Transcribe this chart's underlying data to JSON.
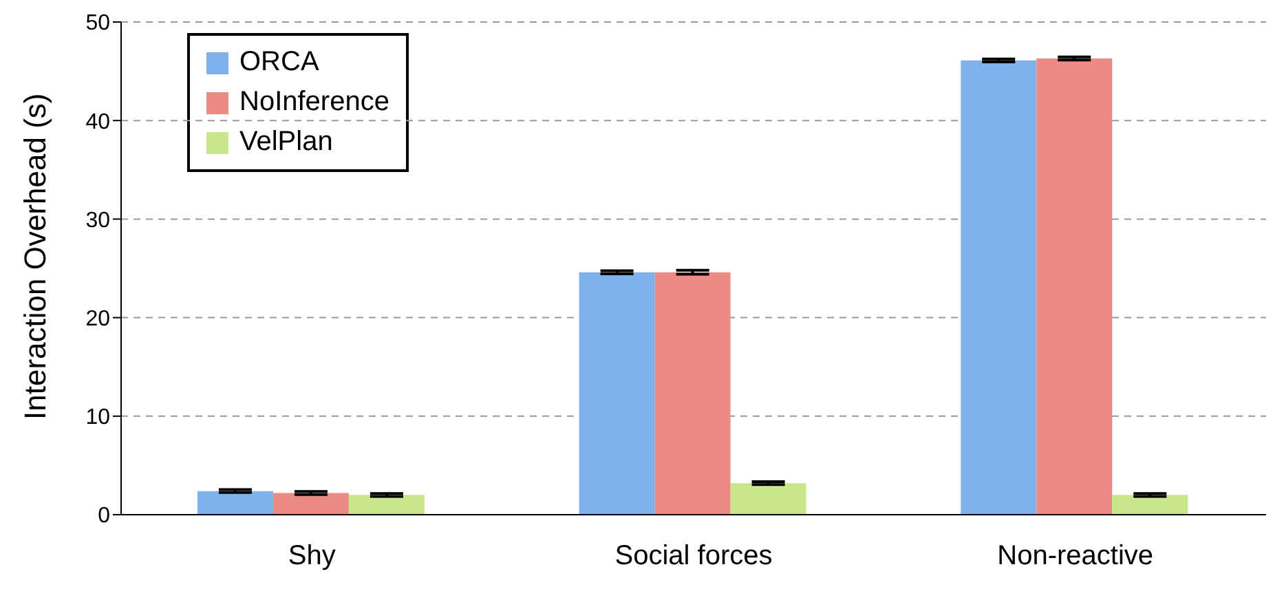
{
  "chart_data": {
    "type": "bar",
    "ylabel": "Interaction Overhead (s)",
    "categories": [
      "Shy",
      "Social forces",
      "Non-reactive"
    ],
    "series": [
      {
        "name": "ORCA",
        "color": "#7fb2ec",
        "values": [
          2.4,
          24.6,
          46.1
        ],
        "errors": [
          0.15,
          0.15,
          0.15
        ]
      },
      {
        "name": "NoInference",
        "color": "#ee8a84",
        "values": [
          2.2,
          24.6,
          46.3
        ],
        "errors": [
          0.15,
          0.2,
          0.15
        ]
      },
      {
        "name": "VelPlan",
        "color": "#c8e68a",
        "values": [
          2.0,
          3.2,
          2.0
        ],
        "errors": [
          0.15,
          0.15,
          0.15
        ]
      }
    ],
    "ylim": [
      0,
      50
    ],
    "yticks": [
      0,
      10,
      20,
      30,
      40,
      50
    ],
    "grid": "y",
    "legend": "top left"
  }
}
